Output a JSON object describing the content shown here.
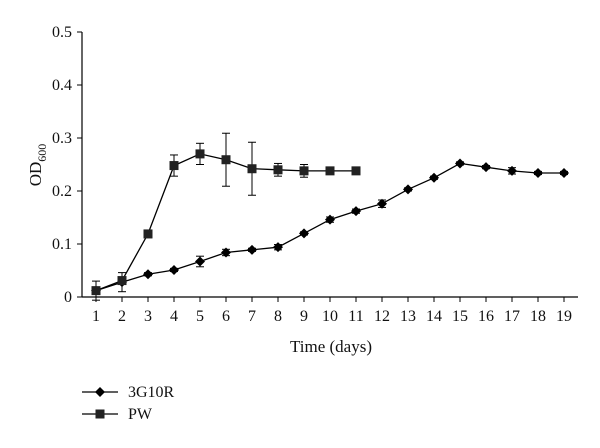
{
  "chart_data": {
    "type": "line",
    "xlabel": "Time (days)",
    "ylabel": {
      "main": "OD",
      "subscript": "600"
    },
    "ylim": [
      0,
      0.5
    ],
    "yticks": [
      "0",
      "0.1",
      "0.2",
      "0.3",
      "0.4",
      "0.5"
    ],
    "xlim": [
      1,
      19
    ],
    "xticks": [
      "1",
      "2",
      "3",
      "4",
      "5",
      "6",
      "7",
      "8",
      "9",
      "10",
      "11",
      "12",
      "13",
      "14",
      "15",
      "16",
      "17",
      "18",
      "19"
    ],
    "grid": false,
    "legend_position": "bottom-left",
    "series": [
      {
        "name": "3G10R",
        "marker": "diamond",
        "x": [
          1,
          2,
          3,
          4,
          5,
          6,
          7,
          8,
          9,
          10,
          11,
          12,
          13,
          14,
          15,
          16,
          17,
          18,
          19
        ],
        "values": [
          0.012,
          0.028,
          0.043,
          0.051,
          0.067,
          0.084,
          0.089,
          0.094,
          0.12,
          0.146,
          0.162,
          0.176,
          0.203,
          0.225,
          0.252,
          0.245,
          0.238,
          0.234,
          0.234
        ],
        "error": [
          0.005,
          0.018,
          0.003,
          0.003,
          0.01,
          0.006,
          0.003,
          0.005,
          0.003,
          0.005,
          0.004,
          0.007,
          0.003,
          0.003,
          0.003,
          0.003,
          0.006,
          0.003,
          0.003
        ]
      },
      {
        "name": "PW",
        "marker": "square",
        "x": [
          1,
          2,
          3,
          4,
          5,
          6,
          7,
          8,
          9,
          10,
          11
        ],
        "values": [
          0.012,
          0.031,
          0.119,
          0.248,
          0.27,
          0.259,
          0.242,
          0.24,
          0.238,
          0.238,
          0.238
        ],
        "error": [
          0.018,
          0.004,
          0.007,
          0.02,
          0.02,
          0.05,
          0.05,
          0.012,
          0.012,
          0.004,
          0.004
        ]
      }
    ]
  }
}
